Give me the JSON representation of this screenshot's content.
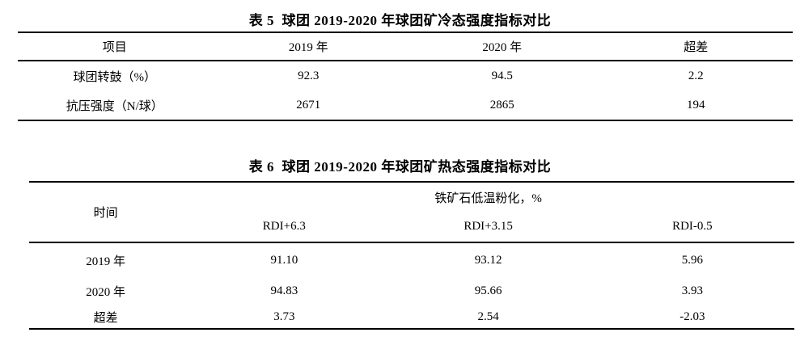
{
  "page": {
    "background": "#ffffff",
    "text_color": "#000000",
    "rule_color": "#000000"
  },
  "table5": {
    "title": "表 5  球团 2019-2020 年球团矿冷态强度指标对比",
    "columns": [
      "项目",
      "2019 年",
      "2020 年",
      "超差"
    ],
    "rows": [
      [
        "球团转鼓（%）",
        "92.3",
        "94.5",
        "2.2"
      ],
      [
        "抗压强度（N/球）",
        "2671",
        "2865",
        "194"
      ]
    ]
  },
  "table6": {
    "title": "表 6  球团 2019-2020 年球团矿热态强度指标对比",
    "header": {
      "col1": "时间",
      "group": "铁矿石低温粉化，%",
      "subcolumns": [
        "RDI+6.3",
        "RDI+3.15",
        "RDI-0.5"
      ]
    },
    "rows": [
      [
        "2019 年",
        "91.10",
        "93.12",
        "5.96"
      ],
      [
        "2020 年",
        "94.83",
        "95.66",
        "3.93"
      ],
      [
        "超差",
        "3.73",
        "2.54",
        "-2.03"
      ]
    ]
  }
}
